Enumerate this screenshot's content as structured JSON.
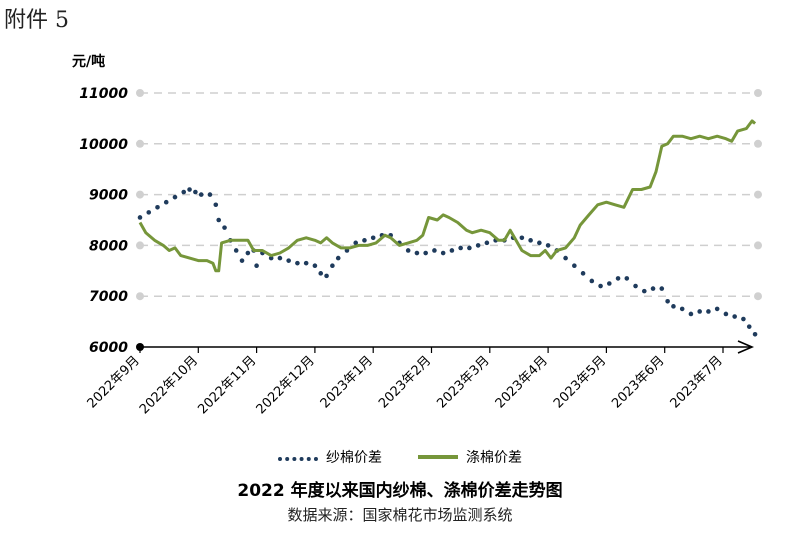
{
  "page": {
    "attachment_label": "附件 5"
  },
  "chart_data": {
    "type": "line",
    "title": "2022 年度以来国内纱棉、涤棉价差走势图",
    "source": "数据来源：国家棉花市场监测系统",
    "ylabel": "元/吨",
    "ylim": [
      6000,
      11000
    ],
    "yticks": [
      6000,
      7000,
      8000,
      9000,
      10000,
      11000
    ],
    "x_labels": [
      "2022年9月",
      "2022年10月",
      "2022年11月",
      "2022年12月",
      "2023年1月",
      "2023年2月",
      "2023年3月",
      "2023年4月",
      "2023年5月",
      "2023年6月",
      "2023年7月"
    ],
    "x_range": [
      0,
      10.6
    ],
    "grid": "horizontal-dashed",
    "legend_position": "bottom",
    "colors": {
      "cotton_yarn": "#1f3b5c",
      "polyester_cotton": "#76963a"
    },
    "series": [
      {
        "name": "纱棉价差",
        "style": "dotted",
        "points": [
          [
            0.0,
            8550
          ],
          [
            0.15,
            8650
          ],
          [
            0.3,
            8750
          ],
          [
            0.45,
            8850
          ],
          [
            0.6,
            8950
          ],
          [
            0.75,
            9050
          ],
          [
            0.85,
            9100
          ],
          [
            0.95,
            9050
          ],
          [
            1.05,
            9000
          ],
          [
            1.2,
            9000
          ],
          [
            1.3,
            8800
          ],
          [
            1.35,
            8500
          ],
          [
            1.45,
            8350
          ],
          [
            1.55,
            8100
          ],
          [
            1.65,
            7900
          ],
          [
            1.75,
            7700
          ],
          [
            1.85,
            7850
          ],
          [
            1.95,
            7900
          ],
          [
            2.0,
            7600
          ],
          [
            2.1,
            7850
          ],
          [
            2.25,
            7750
          ],
          [
            2.4,
            7750
          ],
          [
            2.55,
            7700
          ],
          [
            2.7,
            7650
          ],
          [
            2.85,
            7650
          ],
          [
            3.0,
            7600
          ],
          [
            3.1,
            7450
          ],
          [
            3.2,
            7400
          ],
          [
            3.3,
            7600
          ],
          [
            3.4,
            7750
          ],
          [
            3.55,
            7900
          ],
          [
            3.7,
            8050
          ],
          [
            3.85,
            8100
          ],
          [
            4.0,
            8150
          ],
          [
            4.15,
            8200
          ],
          [
            4.3,
            8200
          ],
          [
            4.45,
            8050
          ],
          [
            4.6,
            7900
          ],
          [
            4.75,
            7850
          ],
          [
            4.9,
            7850
          ],
          [
            5.05,
            7900
          ],
          [
            5.2,
            7850
          ],
          [
            5.35,
            7900
          ],
          [
            5.5,
            7950
          ],
          [
            5.65,
            7950
          ],
          [
            5.8,
            8000
          ],
          [
            5.95,
            8050
          ],
          [
            6.1,
            8100
          ],
          [
            6.25,
            8100
          ],
          [
            6.4,
            8150
          ],
          [
            6.55,
            8150
          ],
          [
            6.7,
            8100
          ],
          [
            6.85,
            8050
          ],
          [
            7.0,
            8000
          ],
          [
            7.15,
            7900
          ],
          [
            7.3,
            7750
          ],
          [
            7.45,
            7600
          ],
          [
            7.6,
            7450
          ],
          [
            7.75,
            7300
          ],
          [
            7.9,
            7200
          ],
          [
            8.05,
            7250
          ],
          [
            8.2,
            7350
          ],
          [
            8.35,
            7350
          ],
          [
            8.5,
            7200
          ],
          [
            8.65,
            7100
          ],
          [
            8.8,
            7150
          ],
          [
            8.95,
            7150
          ],
          [
            9.05,
            6900
          ],
          [
            9.15,
            6800
          ],
          [
            9.3,
            6750
          ],
          [
            9.45,
            6650
          ],
          [
            9.6,
            6700
          ],
          [
            9.75,
            6700
          ],
          [
            9.9,
            6750
          ],
          [
            10.05,
            6650
          ],
          [
            10.2,
            6600
          ],
          [
            10.35,
            6550
          ],
          [
            10.45,
            6400
          ],
          [
            10.55,
            6250
          ]
        ]
      },
      {
        "name": "涤棉价差",
        "style": "solid",
        "points": [
          [
            0.0,
            8450
          ],
          [
            0.1,
            8250
          ],
          [
            0.25,
            8100
          ],
          [
            0.4,
            8000
          ],
          [
            0.5,
            7900
          ],
          [
            0.6,
            7950
          ],
          [
            0.7,
            7800
          ],
          [
            0.85,
            7750
          ],
          [
            1.0,
            7700
          ],
          [
            1.15,
            7700
          ],
          [
            1.25,
            7650
          ],
          [
            1.3,
            7500
          ],
          [
            1.35,
            7500
          ],
          [
            1.4,
            8050
          ],
          [
            1.55,
            8100
          ],
          [
            1.7,
            8100
          ],
          [
            1.85,
            8100
          ],
          [
            1.95,
            7900
          ],
          [
            2.1,
            7900
          ],
          [
            2.25,
            7800
          ],
          [
            2.4,
            7850
          ],
          [
            2.55,
            7950
          ],
          [
            2.7,
            8100
          ],
          [
            2.85,
            8150
          ],
          [
            3.0,
            8100
          ],
          [
            3.1,
            8050
          ],
          [
            3.2,
            8150
          ],
          [
            3.3,
            8050
          ],
          [
            3.45,
            7950
          ],
          [
            3.6,
            7950
          ],
          [
            3.75,
            8000
          ],
          [
            3.9,
            8000
          ],
          [
            4.05,
            8050
          ],
          [
            4.2,
            8200
          ],
          [
            4.3,
            8150
          ],
          [
            4.45,
            8000
          ],
          [
            4.6,
            8050
          ],
          [
            4.75,
            8100
          ],
          [
            4.85,
            8200
          ],
          [
            4.95,
            8550
          ],
          [
            5.1,
            8500
          ],
          [
            5.2,
            8600
          ],
          [
            5.3,
            8550
          ],
          [
            5.45,
            8450
          ],
          [
            5.6,
            8300
          ],
          [
            5.7,
            8250
          ],
          [
            5.85,
            8300
          ],
          [
            6.0,
            8250
          ],
          [
            6.15,
            8100
          ],
          [
            6.25,
            8100
          ],
          [
            6.35,
            8300
          ],
          [
            6.45,
            8100
          ],
          [
            6.55,
            7900
          ],
          [
            6.7,
            7800
          ],
          [
            6.85,
            7800
          ],
          [
            6.95,
            7900
          ],
          [
            7.05,
            7750
          ],
          [
            7.15,
            7900
          ],
          [
            7.3,
            7950
          ],
          [
            7.45,
            8150
          ],
          [
            7.55,
            8400
          ],
          [
            7.7,
            8600
          ],
          [
            7.85,
            8800
          ],
          [
            8.0,
            8850
          ],
          [
            8.15,
            8800
          ],
          [
            8.3,
            8750
          ],
          [
            8.45,
            9100
          ],
          [
            8.6,
            9100
          ],
          [
            8.75,
            9150
          ],
          [
            8.85,
            9450
          ],
          [
            8.95,
            9950
          ],
          [
            9.05,
            10000
          ],
          [
            9.15,
            10150
          ],
          [
            9.3,
            10150
          ],
          [
            9.45,
            10100
          ],
          [
            9.6,
            10150
          ],
          [
            9.75,
            10100
          ],
          [
            9.9,
            10150
          ],
          [
            10.05,
            10100
          ],
          [
            10.15,
            10050
          ],
          [
            10.25,
            10250
          ],
          [
            10.4,
            10300
          ],
          [
            10.5,
            10450
          ],
          [
            10.55,
            10400
          ]
        ]
      }
    ]
  }
}
